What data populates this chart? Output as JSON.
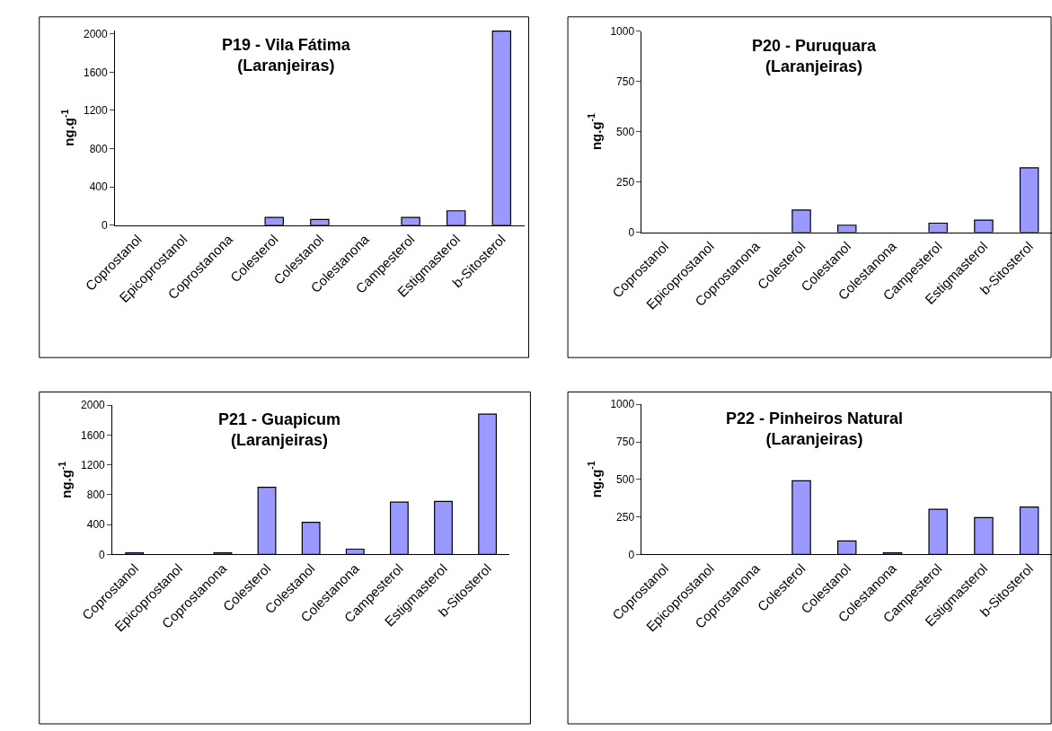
{
  "chart_data": [
    {
      "type": "bar",
      "title": "P19 - Vila Fátima\n(Laranjeiras)",
      "ylabel": "ng.g$^{-1}$",
      "categories": [
        "Coprostanol",
        "Epicoprostanol",
        "Coprostanona",
        "Colesterol",
        "Colestanol",
        "Colestanona",
        "Campesterol",
        "Estigmasterol",
        "b-Sitosterol"
      ],
      "values": [
        null,
        null,
        null,
        80,
        60,
        null,
        80,
        150,
        2030
      ],
      "color": "#9999ff",
      "ylim": [
        0,
        2040
      ],
      "yticks": [
        0,
        400,
        800,
        1200,
        1600,
        2000
      ]
    },
    {
      "type": "bar",
      "title": "P20 - Puruquara\n(Laranjeiras)",
      "ylabel": "ng.g$^{-1}$",
      "categories": [
        "Coprostanol",
        "Epicoprostanol",
        "Coprostanona",
        "Colesterol",
        "Colestanol",
        "Colestanona",
        "Campesterol",
        "Estigmasterol",
        "b-Sitosterol"
      ],
      "values": [
        null,
        null,
        null,
        110,
        35,
        null,
        45,
        60,
        320
      ],
      "color": "#9999ff",
      "ylim": [
        0,
        1000
      ],
      "yticks": [
        0,
        250,
        500,
        750,
        1000
      ]
    },
    {
      "type": "bar",
      "title": "P21 - Guapicum\n(Laranjeiras)",
      "ylabel": "ng.g$^{-1}$",
      "categories": [
        "Coprostanol",
        "Epicoprostanol",
        "Coprostanona",
        "Colesterol",
        "Colestanol",
        "Colestanona",
        "Campesterol",
        "Estigmasterol",
        "b-Sitosterol"
      ],
      "values": [
        20,
        null,
        20,
        900,
        430,
        70,
        700,
        710,
        1880
      ],
      "color": "#9999ff",
      "ylim": [
        0,
        2000
      ],
      "yticks": [
        0,
        400,
        800,
        1200,
        1600,
        2000
      ]
    },
    {
      "type": "bar",
      "title": "P22 - Pinheiros Natural\n(Laranjeiras)",
      "ylabel": "ng.g$^{-1}$",
      "categories": [
        "Coprostanol",
        "Epicoprostanol",
        "Coprostanona",
        "Colesterol",
        "Colestanol",
        "Colestanona",
        "Campesterol",
        "Estigmasterol",
        "b-Sitosterol"
      ],
      "values": [
        null,
        null,
        null,
        490,
        90,
        10,
        300,
        245,
        315
      ],
      "color": "#9999ff",
      "ylim": [
        0,
        1000
      ],
      "yticks": [
        0,
        250,
        500,
        750,
        1000
      ]
    }
  ]
}
